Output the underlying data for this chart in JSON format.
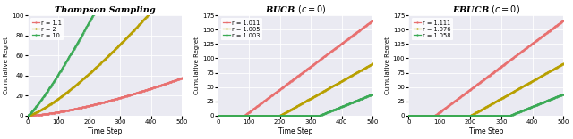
{
  "plots": [
    {
      "title": "Thompson Sampling",
      "xlabel": "Time Step",
      "ylabel": "Cumulative Regret",
      "xlim": [
        0,
        500
      ],
      "ylim": [
        0,
        100
      ],
      "yticks": [
        0,
        20,
        40,
        60,
        80,
        100
      ],
      "series": [
        {
          "label": "r = 1.1",
          "color": "#e87070",
          "scale": 0.0046,
          "power": 1.45
        },
        {
          "label": "r = 2",
          "color": "#b8a000",
          "scale": 0.043,
          "power": 1.3
        },
        {
          "label": "r = 10",
          "color": "#3aaa55",
          "scale": 0.18,
          "power": 1.18
        }
      ]
    },
    {
      "title": "BUCB $(c = 0)$",
      "xlabel": "Time Step",
      "ylabel": "Cumulative Regret",
      "xlim": [
        0,
        500
      ],
      "ylim": [
        0,
        175
      ],
      "yticks": [
        0,
        25,
        50,
        75,
        100,
        125,
        150,
        175
      ],
      "series": [
        {
          "label": "r = 1.011",
          "color": "#e87070",
          "flat_until": 85,
          "slope": 0.4
        },
        {
          "label": "r = 1.005",
          "color": "#b8a000",
          "flat_until": 200,
          "slope": 0.303
        },
        {
          "label": "r = 1.003",
          "color": "#3aaa55",
          "flat_until": 327,
          "slope": 0.218
        }
      ]
    },
    {
      "title": "EBUCB $(c = 0)$",
      "xlabel": "Time Step",
      "ylabel": "Cumulative Regret",
      "xlim": [
        0,
        500
      ],
      "ylim": [
        0,
        175
      ],
      "yticks": [
        0,
        25,
        50,
        75,
        100,
        125,
        150,
        175
      ],
      "series": [
        {
          "label": "r = 1.111",
          "color": "#e87070",
          "flat_until": 85,
          "slope": 0.4
        },
        {
          "label": "r = 1.076",
          "color": "#b8a000",
          "flat_until": 200,
          "slope": 0.303
        },
        {
          "label": "r = 1.058",
          "color": "#3aaa55",
          "flat_until": 327,
          "slope": 0.218
        }
      ]
    }
  ],
  "bg_color": "#eaeaf2",
  "grid_color": "#ffffff",
  "marker": ".",
  "markersize": 1.2,
  "linewidth": 0.9,
  "n_points": 300,
  "fig_width": 6.4,
  "fig_height": 1.56,
  "dpi": 100
}
